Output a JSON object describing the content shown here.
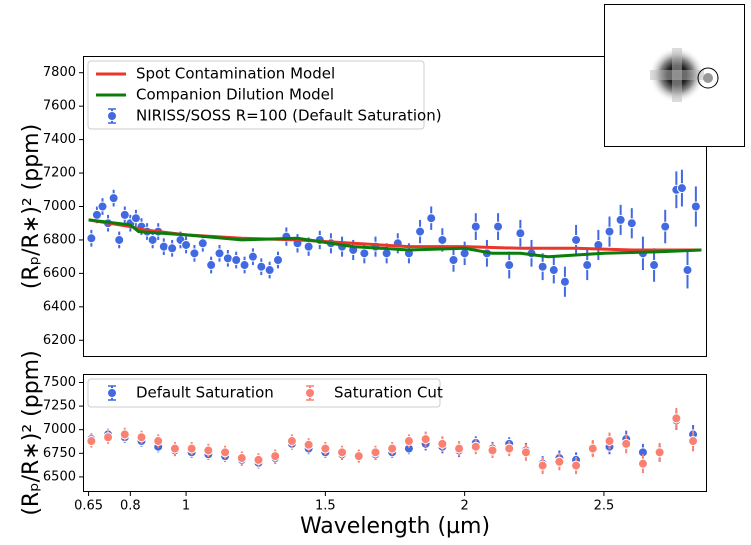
{
  "chart_data": [
    {
      "type": "errorbar",
      "ylabel": "(Rₚ/R∗)² (ppm)",
      "legend": "upper left",
      "xlim": [
        0.63,
        2.87
      ],
      "ylim": [
        6100,
        7900
      ],
      "yticks": [
        6200,
        6400,
        6600,
        6800,
        7000,
        7200,
        7400,
        7600,
        7800
      ],
      "series": [
        {
          "name": "Spot Contamination Model",
          "color": "#e8372c",
          "x": [
            0.65,
            0.8,
            0.85,
            1.0,
            1.2,
            1.4,
            1.6,
            1.8,
            2.0,
            2.2,
            2.4,
            2.6,
            2.85
          ],
          "values": [
            6920,
            6880,
            6860,
            6830,
            6810,
            6800,
            6780,
            6760,
            6760,
            6750,
            6750,
            6740,
            6740
          ]
        },
        {
          "name": "Companion Dilution Model",
          "color": "#0a7d0a",
          "x": [
            0.65,
            0.8,
            0.83,
            1.0,
            1.2,
            1.4,
            1.6,
            1.8,
            2.0,
            2.1,
            2.2,
            2.3,
            2.5,
            2.7,
            2.85
          ],
          "values": [
            6920,
            6890,
            6850,
            6830,
            6800,
            6810,
            6760,
            6740,
            6750,
            6720,
            6720,
            6700,
            6720,
            6730,
            6740
          ]
        },
        {
          "name": "NIRISS/SOSS R=100 (Default Saturation)",
          "color": "#4169e1",
          "x": [
            0.66,
            0.68,
            0.7,
            0.72,
            0.74,
            0.76,
            0.78,
            0.8,
            0.82,
            0.84,
            0.86,
            0.88,
            0.9,
            0.92,
            0.95,
            0.98,
            1.0,
            1.03,
            1.06,
            1.09,
            1.12,
            1.15,
            1.18,
            1.21,
            1.24,
            1.27,
            1.3,
            1.33,
            1.36,
            1.4,
            1.44,
            1.48,
            1.52,
            1.56,
            1.6,
            1.64,
            1.68,
            1.72,
            1.76,
            1.8,
            1.84,
            1.88,
            1.92,
            1.96,
            2.0,
            2.04,
            2.08,
            2.12,
            2.16,
            2.2,
            2.24,
            2.28,
            2.32,
            2.36,
            2.4,
            2.44,
            2.48,
            2.52,
            2.56,
            2.6,
            2.64,
            2.68,
            2.72,
            2.76,
            2.78,
            2.8,
            2.83
          ],
          "values": [
            6810,
            6950,
            7000,
            6900,
            7050,
            6800,
            6950,
            6900,
            6930,
            6880,
            6850,
            6800,
            6850,
            6760,
            6750,
            6800,
            6770,
            6720,
            6780,
            6650,
            6720,
            6690,
            6680,
            6650,
            6700,
            6640,
            6620,
            6680,
            6820,
            6780,
            6760,
            6800,
            6780,
            6760,
            6740,
            6720,
            6760,
            6720,
            6780,
            6720,
            6850,
            6930,
            6800,
            6680,
            6720,
            6880,
            6720,
            6880,
            6650,
            6840,
            6720,
            6640,
            6620,
            6550,
            6800,
            6650,
            6770,
            6850,
            6920,
            6900,
            6720,
            6650,
            6880,
            7100,
            7110,
            6620,
            7000
          ],
          "errors": [
            50,
            50,
            50,
            50,
            50,
            50,
            50,
            50,
            50,
            50,
            50,
            50,
            50,
            50,
            50,
            50,
            50,
            50,
            50,
            50,
            50,
            50,
            50,
            50,
            50,
            50,
            50,
            50,
            55,
            55,
            55,
            55,
            60,
            60,
            60,
            60,
            60,
            60,
            60,
            60,
            70,
            70,
            70,
            70,
            70,
            80,
            80,
            80,
            80,
            80,
            80,
            80,
            80,
            90,
            90,
            90,
            90,
            90,
            90,
            90,
            100,
            100,
            100,
            110,
            110,
            110,
            120
          ]
        }
      ]
    },
    {
      "type": "errorbar",
      "ylabel": "(Rₚ/R∗)² (ppm)",
      "xlabel": "Wavelength (µm)",
      "legend": "upper left",
      "xlim": [
        0.63,
        2.87
      ],
      "ylim": [
        6340,
        7590
      ],
      "yticks": [
        6500,
        6750,
        7000,
        7250,
        7500
      ],
      "xticks": [
        0.65,
        0.8,
        1,
        1.5,
        2,
        2.5
      ],
      "series": [
        {
          "name": "Default Saturation",
          "color": "#4169e1",
          "x": [
            0.66,
            0.72,
            0.78,
            0.84,
            0.9,
            0.96,
            1.02,
            1.08,
            1.14,
            1.2,
            1.26,
            1.32,
            1.38,
            1.44,
            1.5,
            1.56,
            1.62,
            1.68,
            1.74,
            1.8,
            1.86,
            1.92,
            1.98,
            2.04,
            2.1,
            2.16,
            2.22,
            2.28,
            2.34,
            2.4,
            2.46,
            2.52,
            2.58,
            2.64,
            2.7,
            2.76,
            2.82
          ],
          "values": [
            6900,
            6950,
            6920,
            6880,
            6820,
            6780,
            6760,
            6740,
            6720,
            6680,
            6650,
            6700,
            6850,
            6800,
            6760,
            6740,
            6720,
            6740,
            6760,
            6800,
            6850,
            6820,
            6780,
            6860,
            6800,
            6850,
            6780,
            6640,
            6700,
            6680,
            6800,
            6820,
            6900,
            6760,
            6750,
            7100,
            6950
          ],
          "errors": [
            60,
            60,
            60,
            60,
            60,
            60,
            60,
            60,
            60,
            60,
            60,
            60,
            60,
            60,
            60,
            60,
            60,
            60,
            60,
            60,
            70,
            70,
            70,
            70,
            70,
            70,
            80,
            80,
            80,
            80,
            80,
            80,
            90,
            90,
            90,
            100,
            100
          ]
        },
        {
          "name": "Saturation Cut",
          "color": "#fa8072",
          "x": [
            0.66,
            0.72,
            0.78,
            0.84,
            0.9,
            0.96,
            1.02,
            1.08,
            1.14,
            1.2,
            1.26,
            1.32,
            1.38,
            1.44,
            1.5,
            1.56,
            1.62,
            1.68,
            1.74,
            1.8,
            1.86,
            1.92,
            1.98,
            2.04,
            2.1,
            2.16,
            2.22,
            2.28,
            2.34,
            2.4,
            2.46,
            2.52,
            2.58,
            2.64,
            2.7,
            2.76,
            2.82
          ],
          "values": [
            6880,
            6920,
            6950,
            6920,
            6880,
            6800,
            6800,
            6780,
            6760,
            6700,
            6680,
            6720,
            6880,
            6840,
            6800,
            6760,
            6720,
            6760,
            6800,
            6880,
            6900,
            6850,
            6800,
            6820,
            6780,
            6800,
            6760,
            6620,
            6660,
            6620,
            6800,
            6880,
            6850,
            6640,
            6760,
            7120,
            6880
          ],
          "errors": [
            70,
            70,
            70,
            70,
            70,
            70,
            70,
            70,
            70,
            70,
            70,
            70,
            70,
            70,
            70,
            70,
            70,
            70,
            70,
            70,
            80,
            80,
            80,
            80,
            80,
            80,
            90,
            90,
            90,
            90,
            90,
            90,
            100,
            100,
            100,
            110,
            110
          ]
        }
      ]
    }
  ]
}
